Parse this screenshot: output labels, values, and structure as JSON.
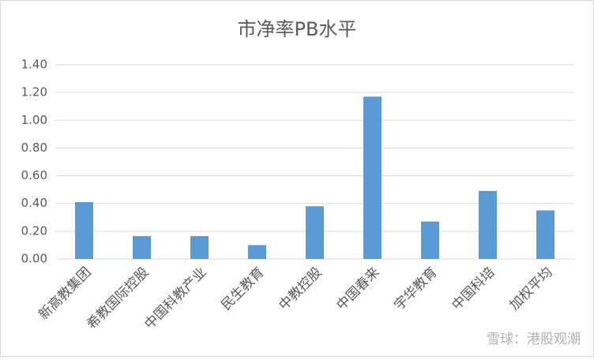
{
  "chart_data": {
    "type": "bar",
    "title": "市净率PB水平",
    "categories": [
      "新高教集团",
      "希教国际控股",
      "中国科教产业",
      "民生教育",
      "中教控股",
      "中国春来",
      "宇华教育",
      "中国科培",
      "加权平均"
    ],
    "values": [
      0.41,
      0.165,
      0.165,
      0.1,
      0.38,
      1.17,
      0.27,
      0.49,
      0.35
    ],
    "color": "#5b9bd5",
    "ylim": [
      0,
      1.4
    ],
    "yticks": [
      {
        "value": 0,
        "label": "0.00"
      },
      {
        "value": 0.2,
        "label": "0.20"
      },
      {
        "value": 0.4,
        "label": "0.40"
      },
      {
        "value": 0.6,
        "label": "0.60"
      },
      {
        "value": 0.8,
        "label": "0.80"
      },
      {
        "value": 1.0,
        "label": "1.00"
      },
      {
        "value": 1.2,
        "label": "1.20"
      },
      {
        "value": 1.4,
        "label": "1.40"
      }
    ],
    "grid": true,
    "watermark": "雪球：港股观潮"
  }
}
